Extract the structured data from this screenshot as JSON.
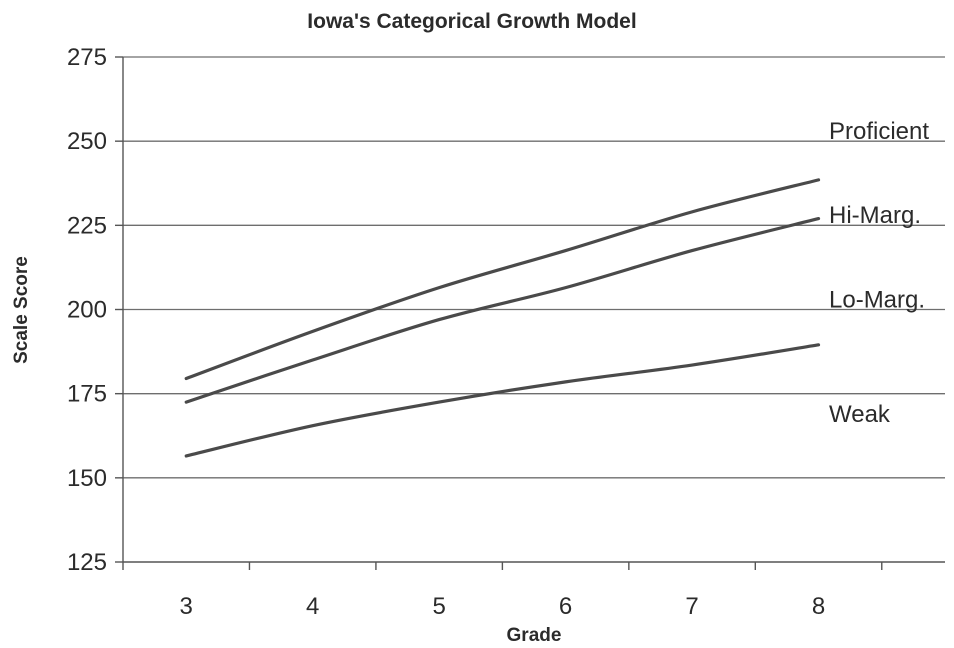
{
  "chart_data": {
    "type": "line",
    "title": "Iowa's Categorical Growth Model",
    "xlabel": "Grade",
    "ylabel": "Scale Score",
    "x": [
      3,
      4,
      5,
      6,
      7,
      8
    ],
    "xlim": [
      2.5,
      9
    ],
    "ylim": [
      125,
      275
    ],
    "y_ticks": [
      125,
      150,
      175,
      200,
      225,
      250,
      275
    ],
    "grid": true,
    "series": [
      {
        "values": [
          179.5,
          193.5,
          206.5,
          217.5,
          229,
          238.5
        ]
      },
      {
        "values": [
          172.5,
          185,
          197,
          206.5,
          217.5,
          227
        ]
      },
      {
        "values": [
          156.5,
          165.5,
          172.5,
          178.5,
          183.5,
          189.5
        ]
      }
    ],
    "band_labels": [
      {
        "text": "Proficient",
        "y": 253
      },
      {
        "text": "Hi-Marg.",
        "y": 228
      },
      {
        "text": "Lo-Marg.",
        "y": 203
      },
      {
        "text": "Weak",
        "y": 169
      }
    ],
    "line_color": "#4a4a4a"
  }
}
